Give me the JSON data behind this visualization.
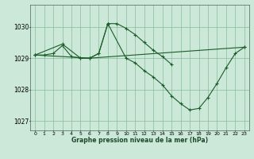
{
  "bg_color": "#cce8d8",
  "grid_color": "#88bb99",
  "line_color": "#1a5c2a",
  "marker_color": "#1a5c2a",
  "xlabel": "Graphe pression niveau de la mer (hPa)",
  "xlim": [
    -0.5,
    23.5
  ],
  "ylim": [
    1026.7,
    1030.7
  ],
  "yticks": [
    1027,
    1028,
    1029,
    1030
  ],
  "xticks": [
    0,
    1,
    2,
    3,
    4,
    5,
    6,
    7,
    8,
    9,
    10,
    11,
    12,
    13,
    14,
    15,
    16,
    17,
    18,
    19,
    20,
    21,
    22,
    23
  ],
  "series": [
    {
      "x": [
        0,
        1,
        2,
        3,
        4,
        5,
        6,
        7,
        8,
        9,
        10,
        11,
        12,
        13,
        14,
        15
      ],
      "y": [
        1029.1,
        1029.1,
        1029.15,
        1029.4,
        1029.05,
        1029.0,
        1029.0,
        1029.15,
        1030.1,
        1030.1,
        1029.95,
        1029.75,
        1029.5,
        1029.25,
        1029.05,
        1028.8
      ]
    },
    {
      "x": [
        0,
        3,
        5,
        6,
        7,
        8
      ],
      "y": [
        1029.1,
        1029.45,
        1029.0,
        1029.0,
        1029.15,
        1030.1
      ]
    },
    {
      "x": [
        8,
        10,
        11,
        12,
        13,
        14,
        15,
        16,
        17,
        18,
        19,
        20,
        21,
        22,
        23
      ],
      "y": [
        1030.1,
        1029.0,
        1028.85,
        1028.6,
        1028.4,
        1028.15,
        1027.8,
        1027.55,
        1027.35,
        1027.4,
        1027.75,
        1028.2,
        1028.7,
        1029.15,
        1029.35
      ]
    },
    {
      "x": [
        0,
        6,
        23
      ],
      "y": [
        1029.1,
        1029.0,
        1029.35
      ]
    }
  ]
}
